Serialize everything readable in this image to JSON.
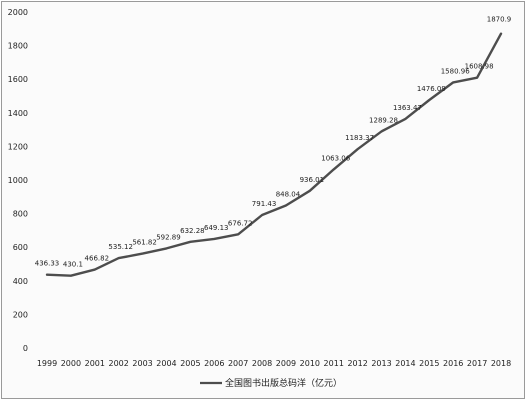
{
  "chart_data": {
    "type": "line",
    "title": "",
    "xlabel": "",
    "ylabel": "",
    "categories": [
      "1999",
      "2000",
      "2001",
      "2002",
      "2003",
      "2004",
      "2005",
      "2006",
      "2007",
      "2008",
      "2009",
      "2010",
      "2011",
      "2012",
      "2013",
      "2014",
      "2015",
      "2016",
      "2017",
      "2018"
    ],
    "series": [
      {
        "name": "全国图书出版总码洋（亿元）",
        "values": [
          436.33,
          430.1,
          466.82,
          535.12,
          561.82,
          592.89,
          632.28,
          649.13,
          676.72,
          791.43,
          848.04,
          936.01,
          1063.06,
          1183.37,
          1289.28,
          1363.47,
          1476.09,
          1580.96,
          1608.98,
          1870.9
        ],
        "labels": [
          "436.33",
          "430.1",
          "466.82",
          "535.12",
          "561.82",
          "592.89",
          "632.28",
          "649.13",
          "676.72",
          "791.43",
          "848.04",
          "936.01",
          "1063.06",
          "1183.37",
          "1289.28",
          "1363.47",
          "1476.09",
          "1580.96",
          "1608.98",
          "1870.9"
        ],
        "color": "#4d4d4d"
      }
    ],
    "ylim": [
      0,
      2000
    ],
    "yticks": [
      "0",
      "200",
      "400",
      "600",
      "800",
      "1000",
      "1200",
      "1400",
      "1600",
      "1800",
      "2000"
    ],
    "grid": false,
    "legend_position": "bottom-center"
  }
}
